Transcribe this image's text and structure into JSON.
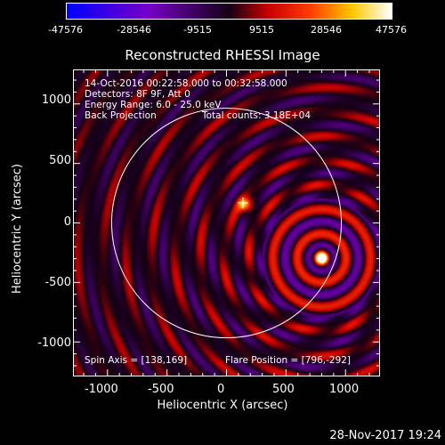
{
  "colorbar": {
    "tick_labels": [
      "-47576",
      "-28546",
      "-9515",
      "9515",
      "28546",
      "47576"
    ],
    "min": -47576,
    "max": 47576
  },
  "image": {
    "title": "Reconstructed RHESSI Image",
    "info_lines": [
      "14-Oct-2016 00:22:58.000 to 00:32:58.000",
      "Detectors: 8F 9F, Att 0",
      "Energy Range: 6.0 - 25.0 keV"
    ],
    "back_projection_label": "Back Projection",
    "total_counts": "Total counts: 3.18E+04",
    "spin_axis": "Spin Axis = [138,169]",
    "flare_position": "Flare Position = [796,-292]",
    "x_axis": {
      "label": "Heliocentric X (arcsec)",
      "ticks": [
        "-1000",
        "-500",
        "0",
        "500",
        "1000"
      ],
      "range": [
        -1290,
        1290
      ]
    },
    "y_axis": {
      "label": "Heliocentric Y (arcsec)",
      "ticks": [
        "1000",
        "500",
        "0",
        "-500",
        "-1000"
      ],
      "range": [
        -1290,
        1290
      ]
    },
    "source_position": [
      796,
      -292
    ],
    "spin_axis_position": [
      138,
      169
    ],
    "solar_radius_arcsec": 965
  },
  "timestamp": "28-Nov-2017 19:24",
  "colors": {
    "background": "#000000",
    "text": "#ffffff",
    "limb": "#ffffff"
  }
}
